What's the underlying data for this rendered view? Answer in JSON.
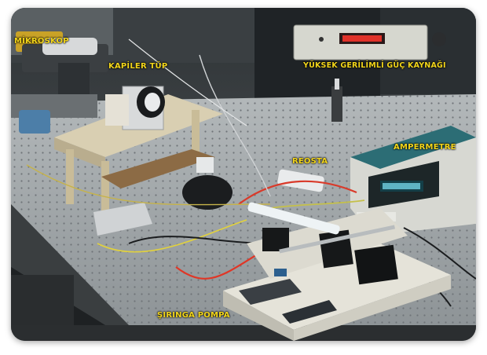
{
  "labels": {
    "microscope": "MİKROSKOP",
    "capillary_tube": "KAPİLER TÜP",
    "hv_power_supply": "YÜKSEK GERİLİMLİ GÜÇ KAYNAĞI",
    "rheostat": "REOSTA",
    "ammeter": "AMPERMETRE",
    "syringe_pump": "ŞIRINGA POMPA"
  },
  "colors": {
    "label_text": "#f2d51a",
    "bench": "#9aa0a3",
    "background": "#3e4346"
  },
  "icons": {
    "pump_keypad": "keypad-icon",
    "ammeter_display": "lcd-display-icon"
  }
}
